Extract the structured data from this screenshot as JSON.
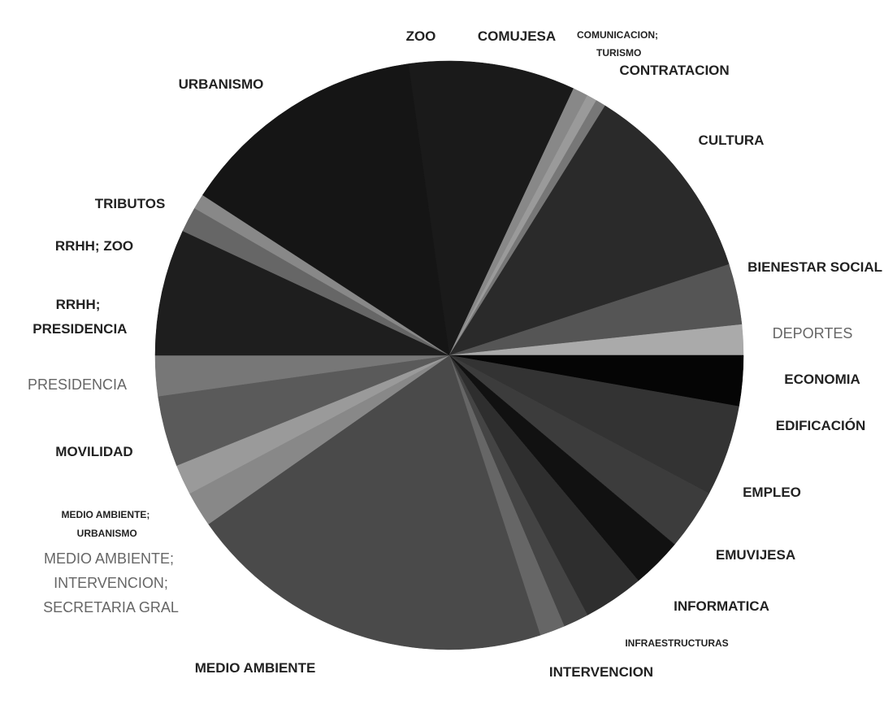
{
  "chart_data": {
    "type": "pie",
    "categories": [
      "ZOO",
      "COMUJESA",
      "COMUNICACION; TURISMO",
      "CONTRATACION",
      "CULTURA",
      "BIENESTAR SOCIAL",
      "DEPORTES",
      "ECONOMIA",
      "EDIFICACIÓN",
      "EMPLEO",
      "EMUVIJESA",
      "INFORMATICA",
      "INFRAESTRUCTURAS",
      "INTERVENCION",
      "MEDIO AMBIENTE",
      "MEDIO AMBIENTE; INTERVENCION; SECRETARIA GRAL",
      "MEDIO AMBIENTE; URBANISMO",
      "MOVILIDAD",
      "PRESIDENCIA",
      "RRHH; PRESIDENCIA",
      "RRHH; ZOO",
      "TRIBUTOS",
      "URBANISMO"
    ],
    "values": [
      33,
      3,
      2,
      2,
      40,
      12,
      6,
      10,
      18,
      12,
      10,
      12,
      5,
      5,
      73,
      7,
      6,
      14,
      8,
      25,
      5,
      3,
      49
    ],
    "colors": [
      "#1a1a1a",
      "#888888",
      "#9a9a9a",
      "#777777",
      "#2a2a2a",
      "#555555",
      "#aaaaaa",
      "#050505",
      "#333333",
      "#3c3c3c",
      "#111111",
      "#2e2e2e",
      "#444444",
      "#666666",
      "#4a4a4a",
      "#888888",
      "#9a9a9a",
      "#5a5a5a",
      "#777777",
      "#1e1e1e",
      "#666666",
      "#888888",
      "#151515"
    ]
  }
}
